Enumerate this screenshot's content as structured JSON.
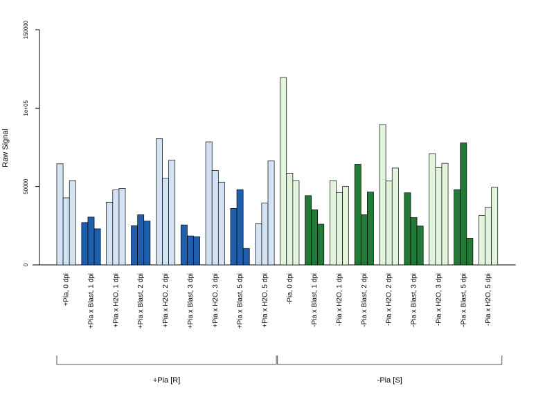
{
  "chart_data": {
    "type": "bar",
    "ylabel": "Raw Signal",
    "ylim": [
      0,
      150000
    ],
    "yticks": [
      {
        "value": 0,
        "label": "0"
      },
      {
        "value": 50000,
        "label": "50000"
      },
      {
        "value": 100000,
        "label": "1e+05"
      },
      {
        "value": 150000,
        "label": "150000"
      }
    ],
    "colors": {
      "light_blue": "#d4e3f3",
      "dark_blue": "#1f5fae",
      "light_green": "#e2f5dc",
      "dark_green": "#237a36"
    },
    "categories": [
      {
        "label": "+Pia, 0 dpi",
        "color": "light_blue",
        "values": [
          64500,
          42800,
          53800
        ]
      },
      {
        "label": "+Pia x Blast, 1 dpi",
        "color": "dark_blue",
        "values": [
          27000,
          30500,
          23000
        ]
      },
      {
        "label": "+Pia x H2O, 1 dpi",
        "color": "light_blue",
        "values": [
          40000,
          47800,
          48800
        ]
      },
      {
        "label": "+Pia x Blast, 2 dpi",
        "color": "dark_blue",
        "values": [
          25000,
          32000,
          28000
        ]
      },
      {
        "label": "+Pia x H2O, 2 dpi",
        "color": "light_blue",
        "values": [
          80500,
          55200,
          66800
        ]
      },
      {
        "label": "+Pia x Blast, 3 dpi",
        "color": "dark_blue",
        "values": [
          25500,
          18500,
          18000
        ]
      },
      {
        "label": "+Pia x H2O, 3 dpi",
        "color": "light_blue",
        "values": [
          78500,
          60200,
          52800
        ]
      },
      {
        "label": "+Pia x Blast, 5 dpi",
        "color": "dark_blue",
        "values": [
          36000,
          48000,
          10500
        ]
      },
      {
        "label": "+Pia x H2O, 5 dpi",
        "color": "light_blue",
        "values": [
          26200,
          39500,
          66300
        ]
      },
      {
        "label": "-Pia, 0 dpi",
        "color": "light_green",
        "values": [
          119500,
          58500,
          53800
        ]
      },
      {
        "label": "-Pia x Blast, 1 dpi",
        "color": "dark_green",
        "values": [
          44200,
          35200,
          26000
        ]
      },
      {
        "label": "-Pia x H2O, 1 dpi",
        "color": "light_green",
        "values": [
          53800,
          46200,
          50000
        ]
      },
      {
        "label": "-Pia x Blast, 2 dpi",
        "color": "dark_green",
        "values": [
          64200,
          32000,
          46500
        ]
      },
      {
        "label": "-Pia x H2O, 2 dpi",
        "color": "light_green",
        "values": [
          89500,
          53500,
          61800
        ]
      },
      {
        "label": "-Pia x Blast, 3 dpi",
        "color": "dark_green",
        "values": [
          46000,
          30200,
          24800
        ]
      },
      {
        "label": "-Pia x H2O, 3 dpi",
        "color": "light_green",
        "values": [
          71000,
          62000,
          64800
        ]
      },
      {
        "label": "-Pia x Blast, 5 dpi",
        "color": "dark_green",
        "values": [
          48000,
          77800,
          17000
        ]
      },
      {
        "label": "-Pia x H2O, 5 dpi",
        "color": "light_green",
        "values": [
          31500,
          36800,
          49500
        ]
      }
    ],
    "groups": [
      {
        "label": "+Pia [R]",
        "from": 0,
        "to": 8
      },
      {
        "label": "-Pia [S]",
        "from": 9,
        "to": 17
      }
    ]
  }
}
